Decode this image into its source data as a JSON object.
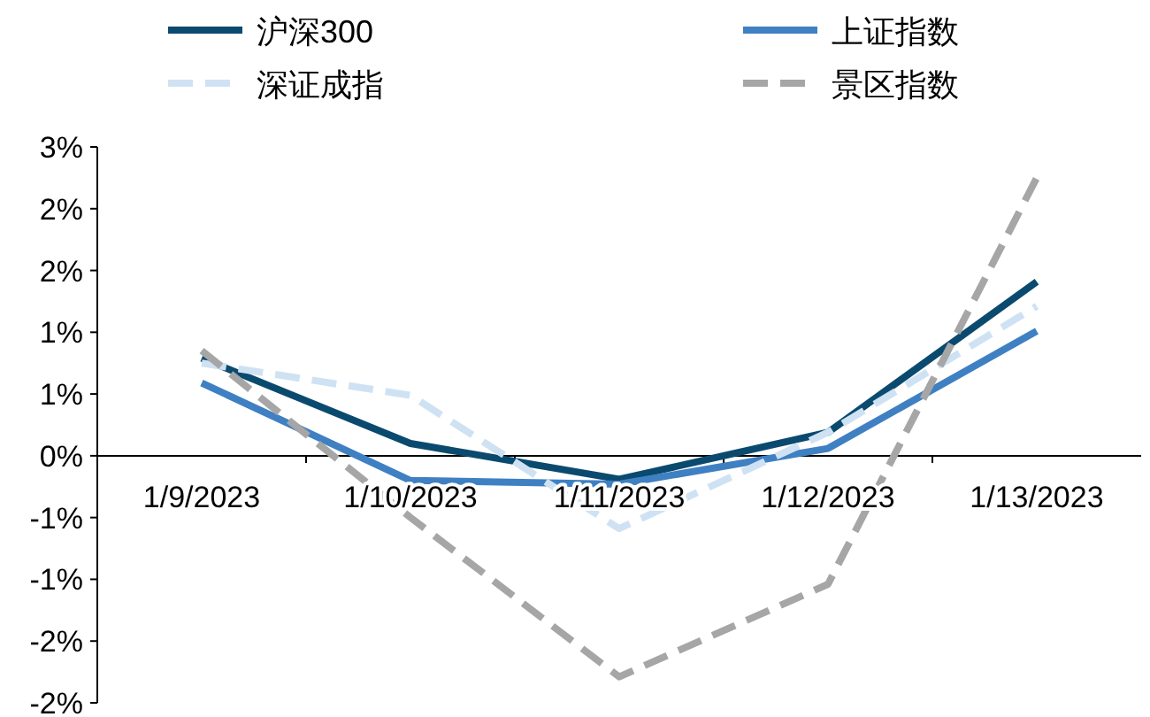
{
  "chart_data": {
    "type": "line",
    "categories": [
      "1/9/2023",
      "1/10/2023",
      "1/11/2023",
      "1/12/2023",
      "1/13/2023"
    ],
    "series": [
      {
        "name": "沪深300",
        "color": "#0b4a6f",
        "line_style": "solid",
        "values": [
          0.79,
          0.1,
          -0.19,
          0.19,
          1.41
        ]
      },
      {
        "name": "上证指数",
        "color": "#3f80c2",
        "line_style": "solid",
        "values": [
          0.59,
          -0.2,
          -0.23,
          0.06,
          1.01
        ]
      },
      {
        "name": "深证成指",
        "color": "#cfe2f3",
        "line_style": "dashed",
        "values": [
          0.75,
          0.49,
          -0.59,
          0.19,
          1.21
        ]
      },
      {
        "name": "景区指数",
        "color": "#a6a6a6",
        "line_style": "dashed",
        "values": [
          0.85,
          -0.5,
          -1.79,
          -1.04,
          2.25
        ]
      }
    ],
    "ylim": [
      -2,
      2.5
    ],
    "yticks": [
      {
        "value": -2,
        "label": "-2%"
      },
      {
        "value": -1.5,
        "label": "-2%"
      },
      {
        "value": -1,
        "label": "-1%"
      },
      {
        "value": -0.5,
        "label": "-1%"
      },
      {
        "value": 0,
        "label": "0%"
      },
      {
        "value": 0.5,
        "label": "1%"
      },
      {
        "value": 1,
        "label": "1%"
      },
      {
        "value": 1.5,
        "label": "2%"
      },
      {
        "value": 2,
        "label": "2%"
      },
      {
        "value": 2.5,
        "label": "3%"
      }
    ],
    "grid": false,
    "legend": "top"
  }
}
